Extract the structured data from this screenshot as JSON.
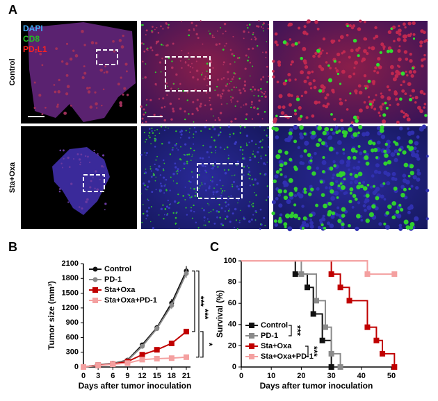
{
  "panels": {
    "a": "A",
    "b": "B",
    "c": "C"
  },
  "images": {
    "channels": [
      "DAPI",
      "CD8",
      "PD-L1"
    ],
    "rows": [
      "Control",
      "Sta+Oxa"
    ]
  },
  "chart_data": [
    {
      "type": "line",
      "ylabel": "Tumor size (mm³)",
      "xlabel": "Days after tumor inoculation",
      "x": [
        0,
        3,
        6,
        9,
        12,
        15,
        18,
        21
      ],
      "xlim": [
        0,
        21
      ],
      "xticks": [
        0,
        3,
        6,
        9,
        12,
        15,
        18,
        21
      ],
      "ylim": [
        0,
        2100
      ],
      "yticks": [
        0,
        300,
        600,
        900,
        1200,
        1500,
        1800,
        2100
      ],
      "legend": "upper left",
      "series": [
        {
          "name": "Control",
          "color": "#111111",
          "marker": "circle",
          "values": [
            0,
            40,
            70,
            140,
            450,
            800,
            1300,
            1950
          ],
          "errors": [
            0,
            5,
            10,
            20,
            40,
            50,
            80,
            100
          ]
        },
        {
          "name": "PD-1",
          "color": "#8a8a8a",
          "marker": "circle",
          "values": [
            0,
            35,
            65,
            130,
            420,
            780,
            1250,
            1900
          ],
          "errors": [
            0,
            5,
            10,
            20,
            40,
            50,
            70,
            90
          ]
        },
        {
          "name": "Sta+Oxa",
          "color": "#c00000",
          "marker": "square",
          "values": [
            0,
            35,
            60,
            110,
            250,
            350,
            480,
            720
          ],
          "errors": [
            0,
            5,
            8,
            15,
            20,
            25,
            30,
            50
          ]
        },
        {
          "name": "Sta+Oxa+PD-1",
          "color": "#f4a0a0",
          "marker": "square",
          "values": [
            0,
            30,
            55,
            80,
            150,
            170,
            180,
            200
          ],
          "errors": [
            0,
            5,
            5,
            10,
            15,
            15,
            15,
            20
          ]
        }
      ],
      "annotations": [
        "***",
        "***",
        "*"
      ]
    },
    {
      "type": "step",
      "ylabel": "Survival (%)",
      "xlabel": "Days after tumor inoculation",
      "xlim": [
        0,
        50
      ],
      "xticks": [
        0,
        10,
        20,
        30,
        40,
        50
      ],
      "ylim": [
        0,
        100
      ],
      "yticks": [
        0,
        20,
        40,
        60,
        80,
        100
      ],
      "legend": "lower left",
      "series": [
        {
          "name": "Control",
          "color": "#111111",
          "x": [
            0,
            18,
            22,
            24,
            27,
            30
          ],
          "values": [
            100,
            87.5,
            75,
            50,
            25,
            0
          ]
        },
        {
          "name": "PD-1",
          "color": "#8a8a8a",
          "x": [
            0,
            20,
            25,
            28,
            30,
            33
          ],
          "values": [
            100,
            87.5,
            62.5,
            37.5,
            12.5,
            0
          ]
        },
        {
          "name": "Sta+Oxa",
          "color": "#c00000",
          "x": [
            0,
            30,
            33,
            36,
            42,
            45,
            47,
            51
          ],
          "values": [
            100,
            87.5,
            75,
            62.5,
            37.5,
            25,
            12.5,
            0
          ]
        },
        {
          "name": "Sta+Oxa+PD-1",
          "color": "#f4a0a0",
          "x": [
            0,
            42,
            51
          ],
          "values": [
            100,
            87.5,
            87.5
          ]
        }
      ],
      "annotations": [
        "***",
        "***"
      ]
    }
  ]
}
